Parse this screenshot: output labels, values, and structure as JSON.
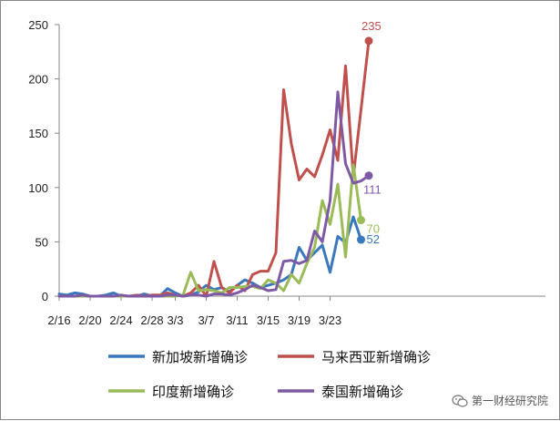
{
  "chart_data": {
    "type": "line",
    "title": "",
    "xlabel": "",
    "ylabel": "",
    "x_tick_labels": [
      "2/16",
      "2/20",
      "2/24",
      "2/28",
      "3/3",
      "3/7",
      "3/11",
      "3/15",
      "3/19",
      "3/23"
    ],
    "x_tick_positions": [
      0,
      4,
      8,
      12,
      15,
      19,
      23,
      27,
      31,
      35
    ],
    "ylim": [
      0,
      250
    ],
    "y_ticks": [
      0,
      50,
      100,
      150,
      200,
      250
    ],
    "grid": false,
    "legend_position": "bottom",
    "series": [
      {
        "name": "新加坡新增确诊",
        "color": "#3a78bd",
        "values": [
          2,
          1,
          3,
          2,
          0,
          0,
          1,
          3,
          0,
          0,
          0,
          2,
          0,
          0,
          7,
          3,
          0,
          1,
          4,
          10,
          6,
          8,
          4,
          10,
          15,
          12,
          8,
          10,
          12,
          15,
          20,
          45,
          33,
          40,
          47,
          22,
          55,
          49,
          73,
          52
        ],
        "end_label": "52"
      },
      {
        "name": "马来西亚新增确诊",
        "color": "#c0504d",
        "values": [
          0,
          0,
          0,
          0,
          0,
          0,
          0,
          0,
          0,
          0,
          1,
          0,
          1,
          1,
          3,
          1,
          0,
          3,
          10,
          0,
          32,
          8,
          3,
          10,
          5,
          20,
          23,
          23,
          40,
          190,
          140,
          107,
          117,
          110,
          130,
          153,
          125,
          212,
          110,
          172,
          235
        ],
        "end_label": "235"
      },
      {
        "name": "印度新增确诊",
        "color": "#9bbb59",
        "values": [
          0,
          0,
          0,
          0,
          0,
          0,
          0,
          0,
          0,
          0,
          0,
          0,
          0,
          0,
          0,
          0,
          1,
          22,
          5,
          6,
          5,
          3,
          8,
          8,
          9,
          9,
          7,
          15,
          12,
          5,
          20,
          12,
          30,
          45,
          88,
          66,
          103,
          36,
          121,
          70
        ],
        "end_label": "70"
      },
      {
        "name": "泰国新增确诊",
        "color": "#7e5aa5",
        "values": [
          0,
          0,
          0,
          1,
          0,
          0,
          0,
          0,
          1,
          0,
          0,
          0,
          0,
          0,
          1,
          1,
          0,
          1,
          1,
          0,
          2,
          2,
          1,
          3,
          6,
          10,
          8,
          5,
          6,
          32,
          33,
          30,
          33,
          60,
          50,
          88,
          188,
          122,
          104,
          106,
          111
        ],
        "end_label": "111"
      }
    ]
  },
  "legend": [
    {
      "label": "新加坡新增确诊",
      "color": "#3a78bd"
    },
    {
      "label": "马来西亚新增确诊",
      "color": "#c0504d"
    },
    {
      "label": "印度新增确诊",
      "color": "#9bbb59"
    },
    {
      "label": "泰国新增确诊",
      "color": "#7e5aa5"
    }
  ],
  "watermark": {
    "text": "第一财经研究院",
    "icon": "wechat-icon"
  }
}
